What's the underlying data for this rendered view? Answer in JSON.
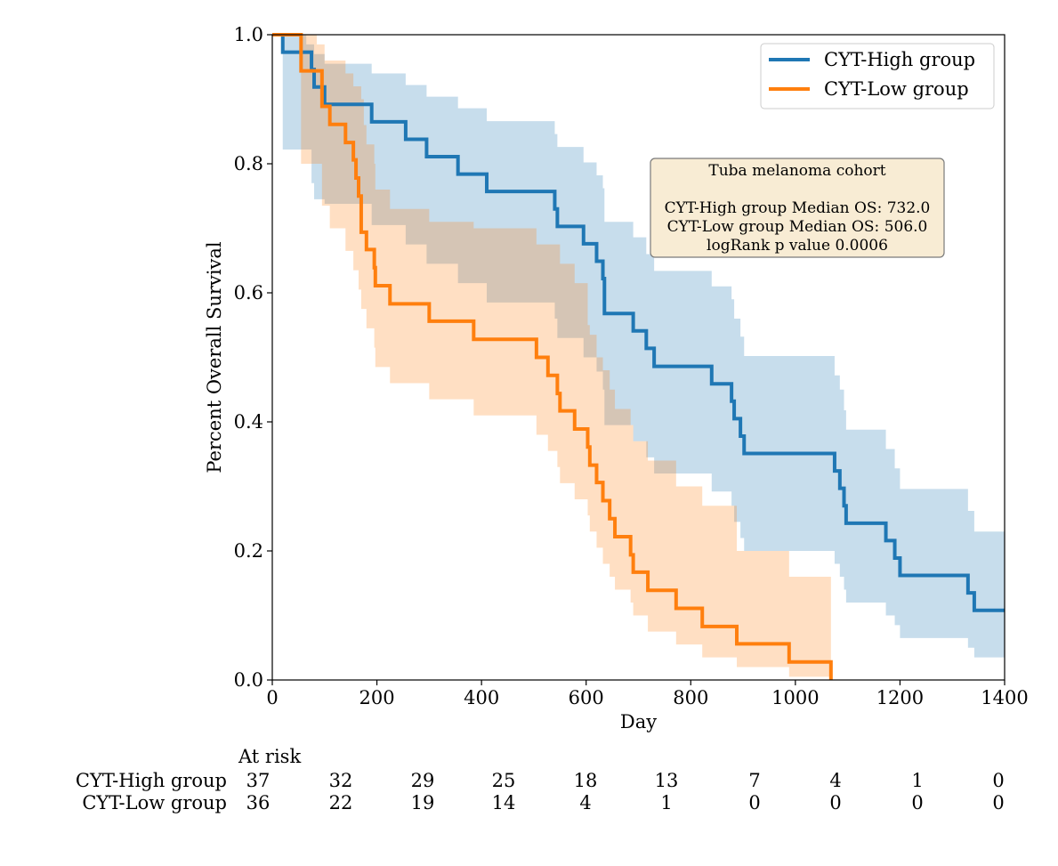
{
  "chart_data": {
    "type": "line",
    "subtype": "kaplan-meier",
    "xlabel": "Day",
    "ylabel": "Percent Overall Survival",
    "xlim": [
      0,
      1400
    ],
    "ylim": [
      0.0,
      1.0
    ],
    "xticks": [
      "0",
      "200",
      "400",
      "600",
      "800",
      "1000",
      "1200",
      "1400"
    ],
    "yticks": [
      "0.0",
      "0.2",
      "0.4",
      "0.6",
      "0.8",
      "1.0"
    ],
    "grid": false,
    "legend_position": "top-right",
    "annotation": {
      "lines": [
        "Tuba melanoma cohort",
        "",
        "CYT-High group Median OS: 732.0",
        "CYT-Low group Median OS: 506.0",
        "logRank p value 0.0006"
      ],
      "background": "#f8ecd4",
      "border": "#7a7a7a"
    },
    "series": [
      {
        "name": "CYT-High group",
        "color": "#1f77b4",
        "steps": [
          [
            0,
            1.0
          ],
          [
            20,
            0.973
          ],
          [
            75,
            0.946
          ],
          [
            80,
            0.919
          ],
          [
            100,
            0.892
          ],
          [
            190,
            0.865
          ],
          [
            255,
            0.838
          ],
          [
            295,
            0.811
          ],
          [
            355,
            0.784
          ],
          [
            410,
            0.757
          ],
          [
            540,
            0.73
          ],
          [
            545,
            0.703
          ],
          [
            595,
            0.676
          ],
          [
            620,
            0.649
          ],
          [
            632,
            0.622
          ],
          [
            635,
            0.568
          ],
          [
            690,
            0.541
          ],
          [
            715,
            0.514
          ],
          [
            730,
            0.486
          ],
          [
            840,
            0.459
          ],
          [
            878,
            0.432
          ],
          [
            883,
            0.405
          ],
          [
            895,
            0.378
          ],
          [
            902,
            0.351
          ],
          [
            1075,
            0.324
          ],
          [
            1085,
            0.297
          ],
          [
            1093,
            0.27
          ],
          [
            1097,
            0.243
          ],
          [
            1173,
            0.216
          ],
          [
            1190,
            0.189
          ],
          [
            1200,
            0.162
          ],
          [
            1330,
            0.135
          ],
          [
            1342,
            0.108
          ],
          [
            1400,
            0.108
          ]
        ],
        "ci_upper": [
          [
            0,
            1.0
          ],
          [
            20,
            1.0
          ],
          [
            65,
            0.985
          ],
          [
            80,
            0.97
          ],
          [
            100,
            0.955
          ],
          [
            190,
            0.94
          ],
          [
            255,
            0.922
          ],
          [
            295,
            0.904
          ],
          [
            355,
            0.886
          ],
          [
            410,
            0.866
          ],
          [
            540,
            0.846
          ],
          [
            545,
            0.826
          ],
          [
            595,
            0.802
          ],
          [
            620,
            0.782
          ],
          [
            632,
            0.762
          ],
          [
            635,
            0.71
          ],
          [
            690,
            0.686
          ],
          [
            715,
            0.66
          ],
          [
            730,
            0.634
          ],
          [
            840,
            0.61
          ],
          [
            878,
            0.59
          ],
          [
            883,
            0.56
          ],
          [
            895,
            0.532
          ],
          [
            902,
            0.502
          ],
          [
            1075,
            0.472
          ],
          [
            1085,
            0.45
          ],
          [
            1093,
            0.418
          ],
          [
            1097,
            0.388
          ],
          [
            1173,
            0.358
          ],
          [
            1190,
            0.328
          ],
          [
            1200,
            0.296
          ],
          [
            1330,
            0.262
          ],
          [
            1342,
            0.23
          ],
          [
            1400,
            0.23
          ]
        ],
        "ci_lower": [
          [
            0,
            1.0
          ],
          [
            20,
            0.822
          ],
          [
            75,
            0.77
          ],
          [
            80,
            0.745
          ],
          [
            100,
            0.738
          ],
          [
            190,
            0.705
          ],
          [
            255,
            0.675
          ],
          [
            295,
            0.645
          ],
          [
            355,
            0.615
          ],
          [
            410,
            0.585
          ],
          [
            540,
            0.56
          ],
          [
            545,
            0.53
          ],
          [
            595,
            0.5
          ],
          [
            620,
            0.478
          ],
          [
            632,
            0.45
          ],
          [
            635,
            0.395
          ],
          [
            690,
            0.37
          ],
          [
            715,
            0.345
          ],
          [
            730,
            0.32
          ],
          [
            840,
            0.292
          ],
          [
            878,
            0.27
          ],
          [
            883,
            0.245
          ],
          [
            895,
            0.22
          ],
          [
            902,
            0.2
          ],
          [
            1075,
            0.18
          ],
          [
            1085,
            0.16
          ],
          [
            1093,
            0.14
          ],
          [
            1097,
            0.12
          ],
          [
            1173,
            0.1
          ],
          [
            1190,
            0.085
          ],
          [
            1200,
            0.065
          ],
          [
            1330,
            0.05
          ],
          [
            1342,
            0.035
          ],
          [
            1400,
            0.035
          ]
        ]
      },
      {
        "name": "CYT-Low group",
        "color": "#ff7f0e",
        "steps": [
          [
            0,
            1.0
          ],
          [
            55,
            0.944
          ],
          [
            95,
            0.889
          ],
          [
            110,
            0.861
          ],
          [
            140,
            0.833
          ],
          [
            155,
            0.806
          ],
          [
            160,
            0.778
          ],
          [
            165,
            0.75
          ],
          [
            170,
            0.694
          ],
          [
            180,
            0.667
          ],
          [
            195,
            0.639
          ],
          [
            197,
            0.611
          ],
          [
            225,
            0.583
          ],
          [
            300,
            0.556
          ],
          [
            385,
            0.528
          ],
          [
            505,
            0.5
          ],
          [
            527,
            0.472
          ],
          [
            545,
            0.444
          ],
          [
            550,
            0.417
          ],
          [
            578,
            0.389
          ],
          [
            603,
            0.361
          ],
          [
            607,
            0.333
          ],
          [
            620,
            0.306
          ],
          [
            632,
            0.278
          ],
          [
            645,
            0.25
          ],
          [
            655,
            0.222
          ],
          [
            685,
            0.194
          ],
          [
            690,
            0.167
          ],
          [
            718,
            0.139
          ],
          [
            772,
            0.111
          ],
          [
            822,
            0.083
          ],
          [
            888,
            0.056
          ],
          [
            988,
            0.028
          ],
          [
            1068,
            0.0
          ]
        ],
        "ci_upper": [
          [
            0,
            1.0
          ],
          [
            55,
            1.0
          ],
          [
            85,
            0.985
          ],
          [
            100,
            0.96
          ],
          [
            140,
            0.94
          ],
          [
            155,
            0.92
          ],
          [
            170,
            0.9
          ],
          [
            175,
            0.86
          ],
          [
            180,
            0.83
          ],
          [
            195,
            0.8
          ],
          [
            197,
            0.76
          ],
          [
            225,
            0.73
          ],
          [
            300,
            0.71
          ],
          [
            385,
            0.7
          ],
          [
            505,
            0.675
          ],
          [
            550,
            0.645
          ],
          [
            578,
            0.615
          ],
          [
            603,
            0.55
          ],
          [
            607,
            0.535
          ],
          [
            620,
            0.5
          ],
          [
            632,
            0.48
          ],
          [
            645,
            0.45
          ],
          [
            655,
            0.42
          ],
          [
            685,
            0.395
          ],
          [
            690,
            0.37
          ],
          [
            718,
            0.34
          ],
          [
            772,
            0.3
          ],
          [
            822,
            0.27
          ],
          [
            888,
            0.2
          ],
          [
            988,
            0.16
          ],
          [
            1068,
            0.125
          ],
          [
            1068,
            0.0
          ]
        ],
        "ci_lower": [
          [
            0,
            1.0
          ],
          [
            55,
            0.8
          ],
          [
            95,
            0.735
          ],
          [
            110,
            0.7
          ],
          [
            140,
            0.665
          ],
          [
            155,
            0.635
          ],
          [
            165,
            0.605
          ],
          [
            170,
            0.575
          ],
          [
            180,
            0.545
          ],
          [
            195,
            0.515
          ],
          [
            197,
            0.485
          ],
          [
            225,
            0.46
          ],
          [
            300,
            0.435
          ],
          [
            385,
            0.41
          ],
          [
            505,
            0.38
          ],
          [
            527,
            0.355
          ],
          [
            545,
            0.33
          ],
          [
            550,
            0.305
          ],
          [
            578,
            0.28
          ],
          [
            603,
            0.255
          ],
          [
            607,
            0.23
          ],
          [
            620,
            0.205
          ],
          [
            632,
            0.18
          ],
          [
            645,
            0.16
          ],
          [
            655,
            0.14
          ],
          [
            685,
            0.12
          ],
          [
            690,
            0.1
          ],
          [
            718,
            0.075
          ],
          [
            772,
            0.055
          ],
          [
            822,
            0.035
          ],
          [
            888,
            0.02
          ],
          [
            988,
            0.005
          ],
          [
            1068,
            0.0
          ]
        ]
      }
    ],
    "at_risk": {
      "title": "At risk",
      "x": [
        0,
        155,
        315,
        470,
        625,
        780,
        935,
        1090,
        1245,
        1400
      ],
      "rows": [
        {
          "label": "CYT-High group",
          "values": [
            "37",
            "32",
            "29",
            "25",
            "18",
            "13",
            "7",
            "4",
            "1",
            "0"
          ]
        },
        {
          "label": "CYT-Low group",
          "values": [
            "36",
            "22",
            "19",
            "14",
            "4",
            "1",
            "0",
            "0",
            "0",
            "0"
          ]
        }
      ]
    }
  }
}
